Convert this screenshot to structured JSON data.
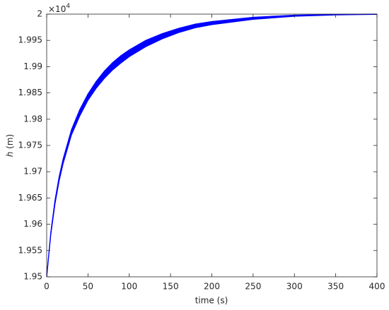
{
  "chart_data": {
    "type": "band",
    "xlabel": "time (s)",
    "ylabel_var": "h",
    "ylabel_unit": "(m)",
    "y_multiplier_base": "×10",
    "y_multiplier_exp": "4",
    "x": [
      0,
      5,
      10,
      15,
      20,
      30,
      40,
      50,
      60,
      70,
      80,
      90,
      100,
      120,
      140,
      160,
      180,
      200,
      250,
      300,
      350,
      400
    ],
    "series": [
      {
        "color": "#0000ff",
        "values": [
          1.95,
          1.9585,
          1.9645,
          1.969,
          1.9725,
          1.978,
          1.9818,
          1.9848,
          1.9872,
          1.9892,
          1.9908,
          1.9921,
          1.9932,
          1.995,
          1.9963,
          1.9973,
          1.9981,
          1.9986,
          1.9994,
          1.9998,
          1.99995,
          2.0
        ]
      },
      {
        "color": "#0000ff",
        "values": [
          1.95,
          1.958,
          1.9638,
          1.9682,
          1.9716,
          1.977,
          1.9806,
          1.9836,
          1.9859,
          1.9878,
          1.9894,
          1.9907,
          1.9919,
          1.9938,
          1.9953,
          1.9965,
          1.9974,
          1.998,
          1.999,
          1.9996,
          1.99985,
          1.99995
        ]
      }
    ],
    "xlim": [
      0,
      400
    ],
    "xticks": [
      0,
      50,
      100,
      150,
      200,
      250,
      300,
      350,
      400
    ],
    "ylim": [
      1.95,
      2
    ],
    "yticks": [
      1.95,
      1.955,
      1.96,
      1.965,
      1.97,
      1.975,
      1.98,
      1.985,
      1.99,
      1.995,
      2
    ],
    "grid": false
  }
}
